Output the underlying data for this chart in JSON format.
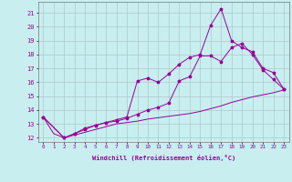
{
  "xlabel": "Windchill (Refroidissement éolien,°C)",
  "bg_color": "#c8eef0",
  "grid_color": "#b0c8c8",
  "line_color": "#990099",
  "xlim": [
    -0.5,
    23.5
  ],
  "ylim": [
    11.7,
    21.8
  ],
  "xticks": [
    0,
    1,
    2,
    3,
    4,
    5,
    6,
    7,
    8,
    9,
    10,
    11,
    12,
    13,
    14,
    15,
    16,
    17,
    18,
    19,
    20,
    21,
    22,
    23
  ],
  "yticks": [
    12,
    13,
    14,
    15,
    16,
    17,
    18,
    19,
    20,
    21
  ],
  "line1_x": [
    0,
    1,
    2,
    3,
    4,
    5,
    6,
    7,
    8,
    9,
    10,
    11,
    12,
    13,
    14,
    15,
    16,
    17,
    18,
    19,
    20,
    21,
    22,
    23
  ],
  "line1_y": [
    13.5,
    12.3,
    12.0,
    12.2,
    12.4,
    12.6,
    12.8,
    13.0,
    13.1,
    13.2,
    13.35,
    13.45,
    13.55,
    13.65,
    13.75,
    13.9,
    14.1,
    14.3,
    14.55,
    14.75,
    14.95,
    15.1,
    15.25,
    15.45
  ],
  "line2_x": [
    0,
    2,
    3,
    4,
    5,
    6,
    7,
    8,
    9,
    10,
    11,
    12,
    13,
    14,
    15,
    16,
    17,
    18,
    19,
    20,
    21,
    22,
    23
  ],
  "line2_y": [
    13.5,
    12.0,
    12.3,
    12.6,
    12.9,
    13.1,
    13.3,
    13.5,
    16.1,
    16.3,
    16.0,
    16.6,
    17.3,
    17.8,
    18.0,
    20.1,
    21.3,
    19.0,
    18.5,
    18.2,
    17.0,
    16.7,
    15.5
  ],
  "line3_x": [
    0,
    2,
    3,
    4,
    5,
    6,
    7,
    8,
    9,
    10,
    11,
    12,
    13,
    14,
    15,
    16,
    17,
    18,
    19,
    20,
    21,
    22,
    23
  ],
  "line3_y": [
    13.5,
    12.0,
    12.3,
    12.7,
    12.9,
    13.1,
    13.2,
    13.4,
    13.7,
    14.0,
    14.2,
    14.5,
    16.1,
    16.4,
    17.9,
    17.9,
    17.5,
    18.5,
    18.8,
    18.0,
    16.9,
    16.2,
    15.5
  ],
  "marker1_x": [
    0,
    1,
    2,
    5,
    8,
    11,
    14,
    17,
    20,
    23
  ],
  "marker2_x": [
    0,
    2,
    4,
    6,
    8,
    10,
    12,
    14,
    15,
    16,
    17,
    18,
    19,
    20,
    21,
    22,
    23
  ],
  "marker3_x": [
    0,
    2,
    4,
    6,
    8,
    10,
    12,
    13,
    14,
    15,
    16,
    17,
    18,
    19,
    20,
    21,
    22,
    23
  ]
}
